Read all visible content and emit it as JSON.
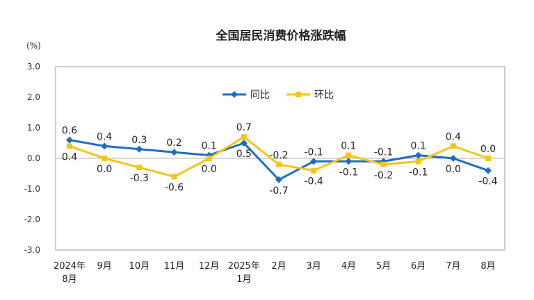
{
  "chart_data": {
    "type": "line",
    "title": "全国居民消费价格涨跌幅",
    "unit": "(%)",
    "categories": [
      [
        "2024年",
        "8月"
      ],
      [
        "9月"
      ],
      [
        "10月"
      ],
      [
        "11月"
      ],
      [
        "12月"
      ],
      [
        "2025年",
        "1月"
      ],
      [
        "2月"
      ],
      [
        "3月"
      ],
      [
        "4月"
      ],
      [
        "5月"
      ],
      [
        "6月"
      ],
      [
        "7月"
      ],
      [
        "8月"
      ]
    ],
    "ylim": [
      -3.0,
      3.0
    ],
    "yticks": [
      3.0,
      2.0,
      1.0,
      0.0,
      -1.0,
      -2.0,
      -3.0
    ],
    "ytick_labels": [
      "3.0",
      "2.0",
      "1.0",
      "0.0",
      "-1.0",
      "-2.0",
      "-3.0"
    ],
    "legend_position": "top-center",
    "series": [
      {
        "name": "同比",
        "color": "#1F6DBF",
        "marker": "diamond",
        "values": [
          0.6,
          0.4,
          0.3,
          0.2,
          0.1,
          0.5,
          -0.7,
          -0.1,
          -0.1,
          -0.1,
          0.1,
          0.0,
          -0.4
        ],
        "labels": [
          "0.6",
          "0.4",
          "0.3",
          "0.2",
          "0.1",
          "0.5",
          "-0.7",
          "-0.1",
          "-0.1",
          "-0.1",
          "0.1",
          "0.0",
          "-0.4"
        ]
      },
      {
        "name": "环比",
        "color": "#F5C518",
        "marker": "square",
        "values": [
          0.4,
          0.0,
          -0.3,
          -0.6,
          0.0,
          0.7,
          -0.2,
          -0.4,
          0.1,
          -0.2,
          -0.1,
          0.4,
          0.0
        ],
        "labels": [
          "0.4",
          "0.0",
          "-0.3",
          "-0.6",
          "0.0",
          "0.7",
          "-0.2",
          "-0.4",
          "0.1",
          "-0.2",
          "-0.1",
          "0.4",
          "0.0"
        ]
      }
    ]
  }
}
